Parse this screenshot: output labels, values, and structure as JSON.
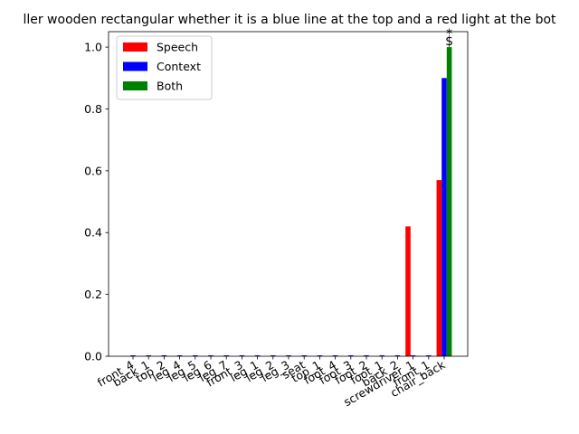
{
  "chart_data": {
    "type": "bar",
    "title": "...ller wooden rectangular whether it is a blue line at the top and a red light at the bottom?",
    "title_visible": "ller wooden rectangular whether it is a blue line at the top and a red light at the bot",
    "xlabel": "",
    "ylabel": "",
    "ylim": [
      0,
      1.05
    ],
    "yticks": [
      "0.0",
      "0.2",
      "0.4",
      "0.6",
      "0.8",
      "1.0"
    ],
    "ytick_values": [
      0.0,
      0.2,
      0.4,
      0.6,
      0.8,
      1.0
    ],
    "grid": false,
    "legend_position": "top-left",
    "categories": [
      "front_4",
      "back_1",
      "top_2",
      "leg_4",
      "leg_5",
      "leg_6",
      "leg_7",
      "front_3",
      "leg_1",
      "leg_2",
      "leg_3",
      "seat",
      "top_1",
      "foot_4",
      "foot_3",
      "foot_2",
      "foot_1",
      "back_2",
      "screwdriver_1",
      "front_1",
      "chair_back"
    ],
    "series": [
      {
        "name": "Speech",
        "color": "#ff0000",
        "values": [
          0,
          0,
          0,
          0,
          0,
          0,
          0,
          0,
          0,
          0,
          0,
          0,
          0,
          0,
          0,
          0,
          0,
          0,
          0.42,
          0,
          0.57
        ]
      },
      {
        "name": "Context",
        "color": "#0000ff",
        "values": [
          0.003,
          0.003,
          0.003,
          0.003,
          0.003,
          0.003,
          0.003,
          0.003,
          0.003,
          0.003,
          0.003,
          0.003,
          0.003,
          0.003,
          0.003,
          0.003,
          0.003,
          0.003,
          0.003,
          0.003,
          0.9
        ]
      },
      {
        "name": "Both",
        "color": "#008000",
        "values": [
          0,
          0,
          0,
          0,
          0,
          0,
          0,
          0,
          0,
          0,
          0,
          0,
          0,
          0,
          0,
          0,
          0,
          0,
          0.001,
          0,
          1.0
        ]
      }
    ],
    "annotations": [
      {
        "category": "chair_back",
        "text": "$",
        "value": 1.0
      },
      {
        "category": "chair_back",
        "text": "*",
        "value": 1.0
      }
    ]
  }
}
